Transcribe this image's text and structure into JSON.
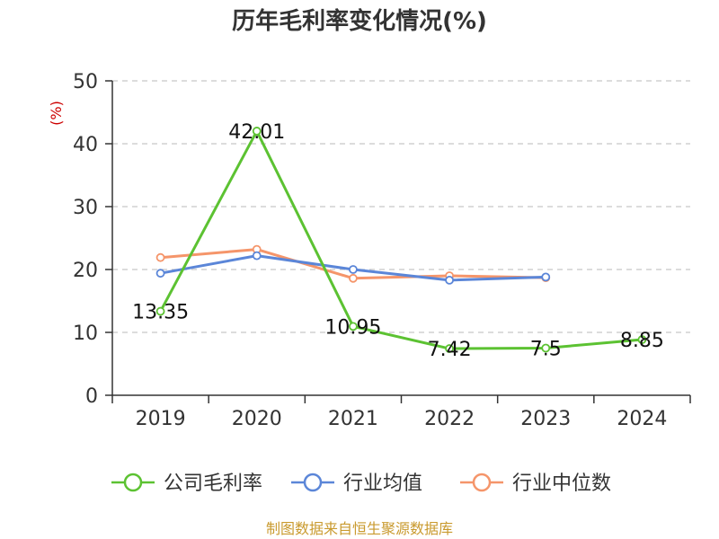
{
  "title": "历年毛利率变化情况(%)",
  "source": "制图数据来自恒生聚源数据库",
  "chart_data": {
    "type": "line",
    "title": "历年毛利率变化情况(%)",
    "ylabel": "(%)",
    "xlabel": "",
    "categories": [
      "2019",
      "2020",
      "2021",
      "2022",
      "2023",
      "2024"
    ],
    "ylim": [
      0,
      50
    ],
    "yticks": [
      0,
      10,
      20,
      30,
      40,
      50
    ],
    "grid": true,
    "legend": "bottom",
    "series": [
      {
        "name": "公司毛利率",
        "color": "#5cc232",
        "values": [
          13.35,
          42.01,
          10.95,
          7.42,
          7.5,
          8.85
        ],
        "labels": [
          "13.35",
          "42.01",
          "10.95",
          "7.42",
          "7.5",
          "8.85"
        ]
      },
      {
        "name": "行业均值",
        "color": "#5b86d8",
        "values": [
          19.4,
          22.2,
          20.0,
          18.3,
          18.8,
          null
        ]
      },
      {
        "name": "行业中位数",
        "color": "#f5956a",
        "values": [
          21.9,
          23.2,
          18.6,
          19.0,
          18.7,
          null
        ]
      }
    ]
  }
}
